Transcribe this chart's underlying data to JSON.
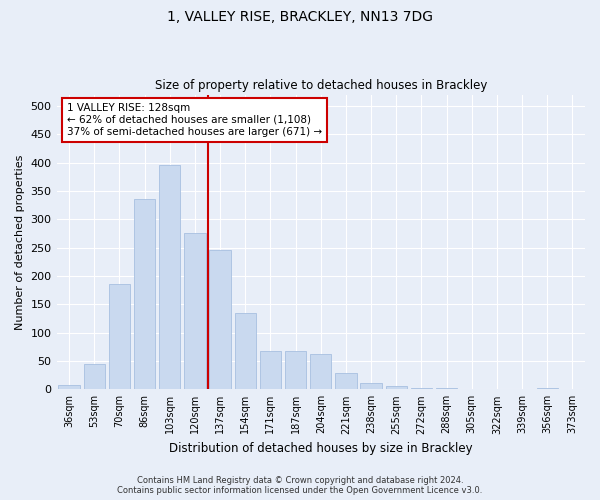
{
  "title": "1, VALLEY RISE, BRACKLEY, NN13 7DG",
  "subtitle": "Size of property relative to detached houses in Brackley",
  "xlabel": "Distribution of detached houses by size in Brackley",
  "ylabel": "Number of detached properties",
  "categories": [
    "36sqm",
    "53sqm",
    "70sqm",
    "86sqm",
    "103sqm",
    "120sqm",
    "137sqm",
    "154sqm",
    "171sqm",
    "187sqm",
    "204sqm",
    "221sqm",
    "238sqm",
    "255sqm",
    "272sqm",
    "288sqm",
    "305sqm",
    "322sqm",
    "339sqm",
    "356sqm",
    "373sqm"
  ],
  "values": [
    8,
    45,
    185,
    335,
    395,
    275,
    245,
    135,
    68,
    68,
    62,
    28,
    12,
    5,
    3,
    2,
    1,
    0,
    0,
    2,
    1
  ],
  "bar_color": "#c9d9ef",
  "bar_edge_color": "#a8c0e0",
  "vline_color": "#cc0000",
  "vline_x": 5.5,
  "property_label": "1 VALLEY RISE: 128sqm",
  "annotation_line1": "← 62% of detached houses are smaller (1,108)",
  "annotation_line2": "37% of semi-detached houses are larger (671) →",
  "ylim": [
    0,
    520
  ],
  "yticks": [
    0,
    50,
    100,
    150,
    200,
    250,
    300,
    350,
    400,
    450,
    500
  ],
  "fig_bg_color": "#e8eef8",
  "plot_bg_color": "#e8eef8",
  "grid_color": "#ffffff",
  "footer_line1": "Contains HM Land Registry data © Crown copyright and database right 2024.",
  "footer_line2": "Contains public sector information licensed under the Open Government Licence v3.0."
}
